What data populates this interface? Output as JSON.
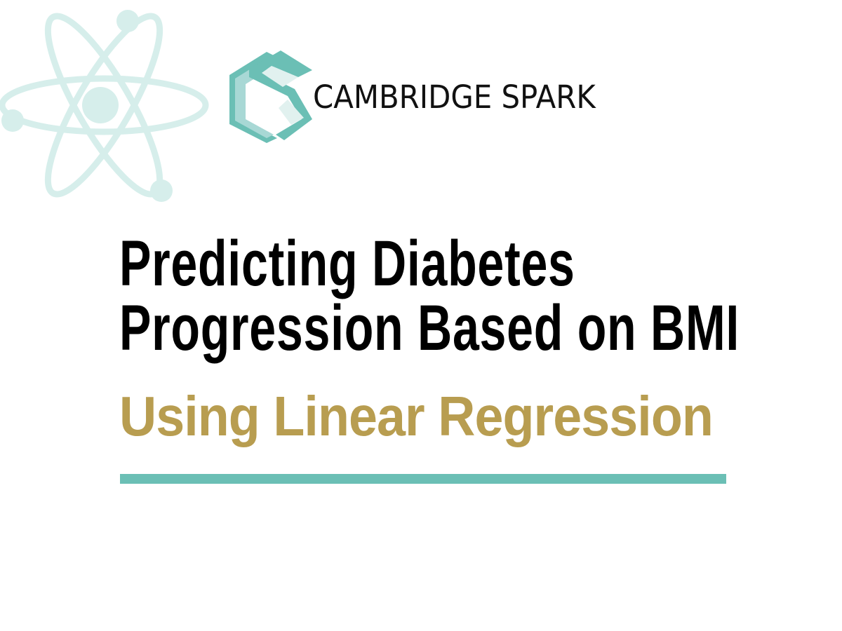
{
  "brand": {
    "name": "CAMBRIDGE SPARK",
    "accent_color": "#6bbfb5",
    "logo_icon": "cambridge-spark-logo"
  },
  "decoration": {
    "icon": "atom-icon",
    "color": "#d6eeeb"
  },
  "title": {
    "line1": "Predicting Diabetes",
    "line2": "Progression Based on BMI"
  },
  "subtitle": {
    "text": "Using Linear Regression",
    "color": "#b89d50"
  },
  "divider": {
    "color": "#6bbfb5"
  }
}
